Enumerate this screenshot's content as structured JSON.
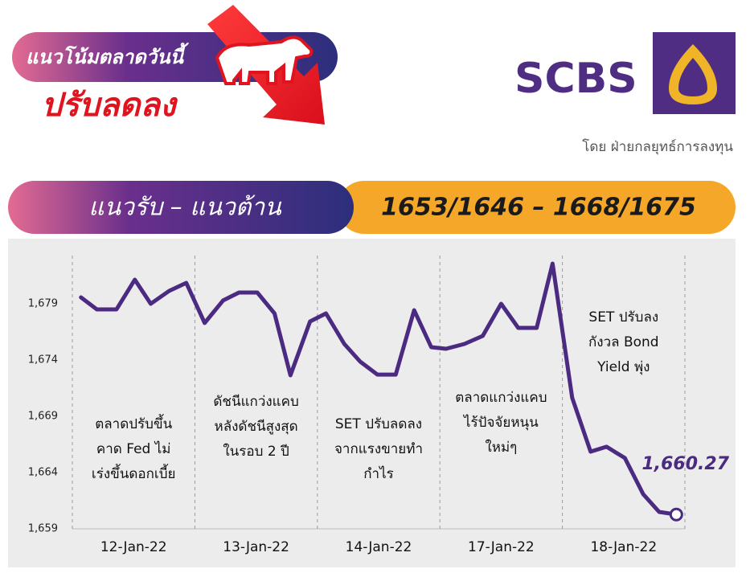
{
  "header": {
    "tag": "แนวโน้มตลาดวันนี้",
    "trend": "ปรับลดลง",
    "brand": "SCBS",
    "byline": "โดย ฝ่ายกลยุทธ์การลงทุน",
    "range_label": "แนวรับ – แนวต้าน",
    "range_values": "1653/1646 – 1668/1675"
  },
  "chart_data": {
    "type": "line",
    "color": "#4b2a82",
    "x": [
      0.07,
      0.2,
      0.36,
      0.51,
      0.64,
      0.79,
      0.93,
      1.08,
      1.23,
      1.36,
      1.51,
      1.65,
      1.78,
      1.94,
      2.07,
      2.22,
      2.35,
      2.49,
      2.64,
      2.79,
      2.93,
      3.05,
      3.2,
      3.35,
      3.5,
      3.64,
      3.79,
      3.92,
      4.08,
      4.23,
      4.36,
      4.51,
      4.66,
      4.79,
      4.93
    ],
    "values": [
      1679.57,
      1678.5,
      1678.5,
      1681.14,
      1679,
      1680.14,
      1680.86,
      1677.29,
      1679.29,
      1680,
      1680,
      1678.14,
      1672.64,
      1677.43,
      1678.14,
      1675.43,
      1673.86,
      1672.71,
      1672.71,
      1678.43,
      1675.14,
      1675,
      1675.43,
      1676.14,
      1679,
      1676.86,
      1676.86,
      1682.57,
      1670.64,
      1665.86,
      1666.29,
      1665.29,
      1662.07,
      1660.5,
      1660.27
    ],
    "value_labels": [
      null,
      null,
      null,
      null,
      null,
      null,
      null,
      null,
      null,
      null,
      null,
      null,
      null,
      null,
      null,
      null,
      null,
      null,
      null,
      null,
      null,
      null,
      null,
      null,
      null,
      null,
      null,
      null,
      null,
      null,
      null,
      null,
      null,
      null,
      "1,660.27"
    ],
    "xlim": [
      0,
      5
    ],
    "xticks": [
      {
        "value": 0.5,
        "label": "12-Jan-22"
      },
      {
        "value": 1.5,
        "label": "13-Jan-22"
      },
      {
        "value": 2.5,
        "label": "14-Jan-22"
      },
      {
        "value": 3.5,
        "label": "17-Jan-22"
      },
      {
        "value": 4.5,
        "label": "18-Jan-22"
      }
    ],
    "ylim": [
      1659,
      1684
    ],
    "yticks": [
      {
        "value": 1659,
        "label": "1,659"
      },
      {
        "value": 1664,
        "label": "1,664"
      },
      {
        "value": 1669,
        "label": "1,669"
      },
      {
        "value": 1674,
        "label": "1,674"
      },
      {
        "value": 1679,
        "label": "1,679"
      }
    ],
    "annotations": [
      [
        "ตลาดปรับขึ้น",
        "คาด Fed ไม่",
        "เร่งขึ้นดอกเบี้ย"
      ],
      [
        "ดัชนีแกว่งแคบ",
        "หลังดัชนีสูงสุด",
        "ในรอบ 2 ปี"
      ],
      [
        "SET ปรับลดลง",
        "จากแรงขายทำ",
        "กำไร"
      ],
      [
        "ตลาดแกว่งแคบ",
        "ไร้ปัจจัยหนุน",
        "ใหม่ๆ"
      ],
      [
        "SET ปรับลง",
        "กังวล Bond",
        "Yield พุ่ง"
      ]
    ]
  }
}
